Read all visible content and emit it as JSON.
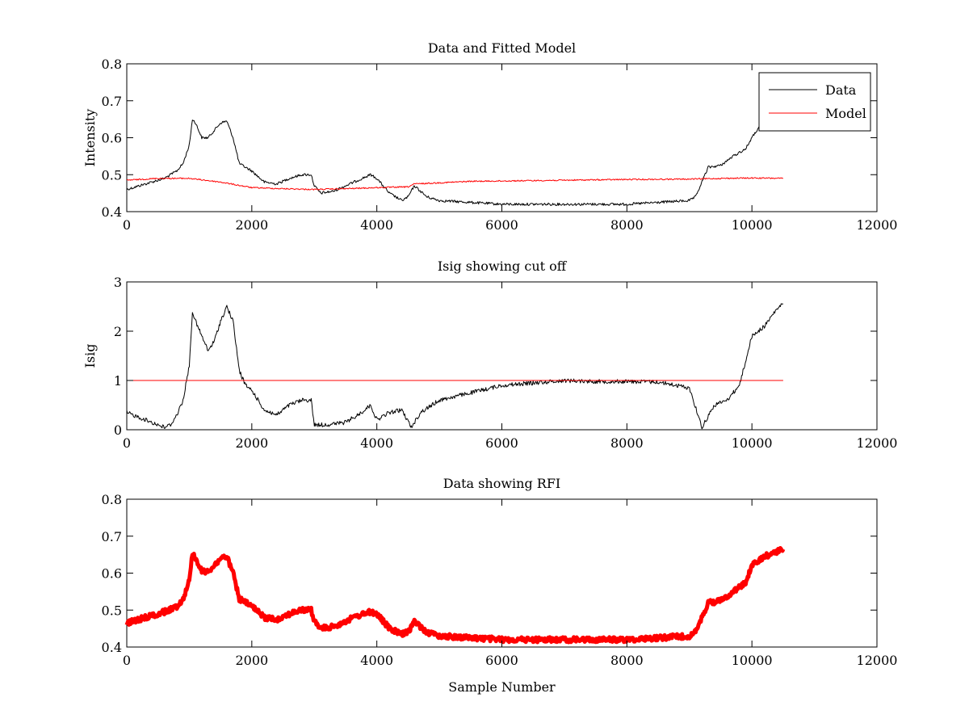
{
  "chart_data": [
    {
      "type": "line",
      "title": "Data and Fitted Model",
      "xlabel": "",
      "ylabel": "Intensity",
      "xlim": [
        0,
        12000
      ],
      "ylim": [
        0.4,
        0.8
      ],
      "x_ticks": [
        "0",
        "2000",
        "4000",
        "6000",
        "8000",
        "10000",
        "12000"
      ],
      "y_ticks": [
        "0.4",
        "0.5",
        "0.6",
        "0.7",
        "0.8"
      ],
      "grid": false,
      "legend_position": "top-right",
      "series": [
        {
          "name": "Data",
          "color": "#000000",
          "x": [
            0,
            200,
            400,
            600,
            800,
            900,
            1000,
            1050,
            1100,
            1200,
            1300,
            1400,
            1500,
            1600,
            1700,
            1800,
            1900,
            2000,
            2200,
            2400,
            2600,
            2800,
            2950,
            3000,
            3100,
            3300,
            3500,
            3700,
            3900,
            4000,
            4200,
            4400,
            4500,
            4600,
            4800,
            5000,
            5500,
            6000,
            6500,
            7000,
            7500,
            8000,
            8500,
            9000,
            9100,
            9300,
            9500,
            9700,
            9900,
            10000,
            10100,
            10150
          ],
          "y": [
            0.46,
            0.47,
            0.48,
            0.49,
            0.51,
            0.53,
            0.58,
            0.65,
            0.64,
            0.6,
            0.6,
            0.62,
            0.64,
            0.645,
            0.6,
            0.53,
            0.52,
            0.51,
            0.48,
            0.475,
            0.49,
            0.5,
            0.5,
            0.47,
            0.45,
            0.455,
            0.47,
            0.485,
            0.5,
            0.49,
            0.45,
            0.43,
            0.44,
            0.47,
            0.44,
            0.43,
            0.425,
            0.42,
            0.42,
            0.42,
            0.42,
            0.42,
            0.425,
            0.43,
            0.44,
            0.52,
            0.525,
            0.55,
            0.57,
            0.6,
            0.625,
            0.63
          ]
        },
        {
          "name": "Model",
          "color": "#ff0000",
          "x": [
            0,
            500,
            1000,
            1500,
            2000,
            2500,
            3000,
            3500,
            4000,
            4500,
            4600,
            5000,
            5500,
            6000,
            7000,
            8000,
            9000,
            9500,
            10000,
            10500
          ],
          "y": [
            0.485,
            0.49,
            0.49,
            0.48,
            0.465,
            0.462,
            0.46,
            0.462,
            0.465,
            0.467,
            0.475,
            0.478,
            0.482,
            0.483,
            0.485,
            0.487,
            0.488,
            0.49,
            0.491,
            0.49
          ]
        }
      ]
    },
    {
      "type": "line",
      "title": "Isig showing cut off",
      "xlabel": "",
      "ylabel": "Isig",
      "xlim": [
        0,
        12000
      ],
      "ylim": [
        0,
        3
      ],
      "x_ticks": [
        "0",
        "2000",
        "4000",
        "6000",
        "8000",
        "10000",
        "12000"
      ],
      "y_ticks": [
        "0",
        "1",
        "2",
        "3"
      ],
      "grid": false,
      "series": [
        {
          "color": "#000000",
          "x": [
            0,
            200,
            400,
            600,
            700,
            800,
            900,
            1000,
            1050,
            1100,
            1200,
            1300,
            1400,
            1500,
            1600,
            1700,
            1800,
            1900,
            2000,
            2200,
            2400,
            2600,
            2800,
            2950,
            3000,
            3200,
            3500,
            3700,
            3900,
            4000,
            4200,
            4400,
            4550,
            4700,
            5000,
            5500,
            6000,
            6500,
            7000,
            7500,
            8000,
            8500,
            9000,
            9200,
            9400,
            9600,
            9800,
            10000,
            10200,
            10400,
            10500
          ],
          "y": [
            0.35,
            0.25,
            0.15,
            0.05,
            0.1,
            0.3,
            0.6,
            1.3,
            2.4,
            2.2,
            1.9,
            1.6,
            1.8,
            2.2,
            2.5,
            2.2,
            1.2,
            0.9,
            0.8,
            0.4,
            0.3,
            0.5,
            0.6,
            0.6,
            0.1,
            0.1,
            0.15,
            0.3,
            0.5,
            0.2,
            0.35,
            0.4,
            0.05,
            0.35,
            0.6,
            0.75,
            0.9,
            0.95,
            1.0,
            0.98,
            0.98,
            0.97,
            0.85,
            0.05,
            0.5,
            0.6,
            0.9,
            1.9,
            2.1,
            2.45,
            2.55
          ]
        },
        {
          "color": "#ff0000",
          "x": [
            0,
            10500
          ],
          "y": [
            1,
            1
          ]
        }
      ]
    },
    {
      "type": "line",
      "title": "Data showing RFI",
      "xlabel": "Sample Number",
      "ylabel": "",
      "xlim": [
        0,
        12000
      ],
      "ylim": [
        0.4,
        0.8
      ],
      "x_ticks": [
        "0",
        "2000",
        "4000",
        "6000",
        "8000",
        "10000",
        "12000"
      ],
      "y_ticks": [
        "0.4",
        "0.5",
        "0.6",
        "0.7",
        "0.8"
      ],
      "grid": false,
      "series": [
        {
          "color": "#ff0000",
          "x": [
            0,
            200,
            400,
            600,
            800,
            900,
            1000,
            1050,
            1100,
            1200,
            1300,
            1400,
            1500,
            1600,
            1700,
            1800,
            1900,
            2000,
            2200,
            2400,
            2600,
            2800,
            2950,
            3000,
            3100,
            3300,
            3500,
            3700,
            3900,
            4000,
            4200,
            4400,
            4500,
            4600,
            4800,
            5000,
            5500,
            6000,
            6500,
            7000,
            7500,
            8000,
            8500,
            9000,
            9100,
            9300,
            9500,
            9700,
            9900,
            10000,
            10200,
            10500
          ],
          "y": [
            0.465,
            0.475,
            0.485,
            0.495,
            0.51,
            0.53,
            0.58,
            0.655,
            0.64,
            0.605,
            0.605,
            0.62,
            0.64,
            0.645,
            0.6,
            0.53,
            0.52,
            0.51,
            0.48,
            0.475,
            0.49,
            0.5,
            0.5,
            0.47,
            0.45,
            0.455,
            0.47,
            0.485,
            0.495,
            0.49,
            0.45,
            0.435,
            0.44,
            0.47,
            0.44,
            0.43,
            0.425,
            0.42,
            0.42,
            0.42,
            0.42,
            0.42,
            0.425,
            0.43,
            0.44,
            0.52,
            0.525,
            0.55,
            0.575,
            0.62,
            0.645,
            0.665
          ]
        }
      ]
    }
  ]
}
